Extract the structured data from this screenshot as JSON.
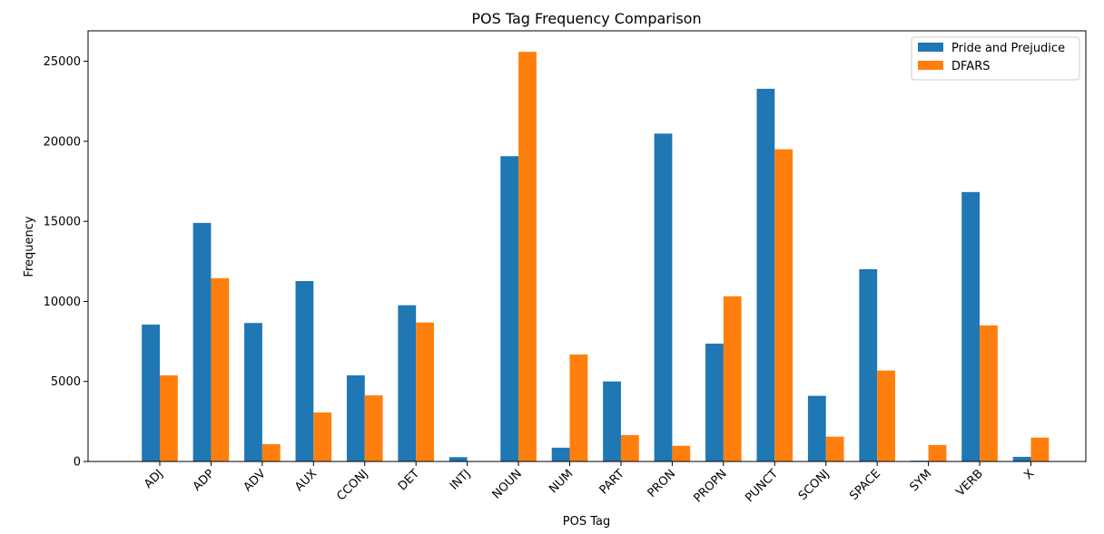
{
  "chart_data": {
    "type": "bar",
    "title": "POS Tag Frequency Comparison",
    "xlabel": "POS Tag",
    "ylabel": "Frequency",
    "categories": [
      "ADJ",
      "ADP",
      "ADV",
      "AUX",
      "CCONJ",
      "DET",
      "INTJ",
      "NOUN",
      "NUM",
      "PART",
      "PRON",
      "PROPN",
      "PUNCT",
      "SCONJ",
      "SPACE",
      "SYM",
      "VERB",
      "X"
    ],
    "series": [
      {
        "name": "Pride and Prejudice",
        "color": "#1f77b4",
        "values": [
          8550,
          14900,
          8650,
          11270,
          5380,
          9760,
          270,
          19070,
          860,
          5000,
          20480,
          7360,
          23280,
          4100,
          12010,
          50,
          16830,
          290
        ]
      },
      {
        "name": "DFARS",
        "color": "#ff7f0e",
        "values": [
          5380,
          11450,
          1080,
          3060,
          4130,
          8680,
          0,
          25590,
          6680,
          1650,
          980,
          10320,
          19500,
          1550,
          5680,
          1030,
          8500,
          1490
        ]
      }
    ],
    "ylim": [
      0,
      26900
    ],
    "yticks": [
      0,
      5000,
      10000,
      15000,
      20000,
      25000
    ],
    "grid": false,
    "legend_position": "top-right"
  }
}
